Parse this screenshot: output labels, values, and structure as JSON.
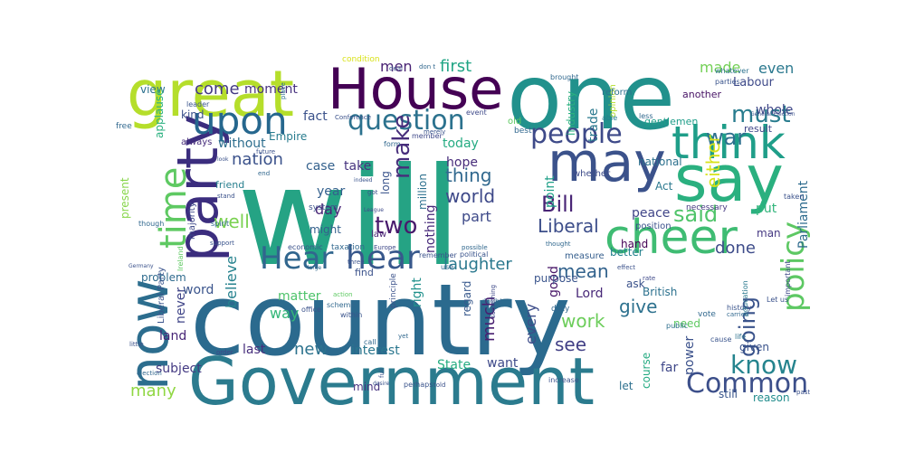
{
  "wordcloud": {
    "words": [
      {
        "text": "will",
        "color": "#25a384"
      },
      {
        "text": "country",
        "color": "#2b6a8e"
      },
      {
        "text": "one",
        "color": "#21918c"
      },
      {
        "text": "Government",
        "color": "#2b7b8e"
      },
      {
        "text": "great",
        "color": "#b5de2b"
      },
      {
        "text": "House",
        "color": "#440154"
      },
      {
        "text": "party",
        "color": "#3b2d7e"
      },
      {
        "text": "may",
        "color": "#3b528b"
      },
      {
        "text": "say",
        "color": "#2ab07f"
      },
      {
        "text": "time",
        "color": "#5ec962"
      },
      {
        "text": "now",
        "color": "#2c6d8e"
      },
      {
        "text": "cheer",
        "color": "#3fbc73"
      },
      {
        "text": "think",
        "color": "#1f9e89"
      },
      {
        "text": "upon",
        "color": "#26678e"
      },
      {
        "text": "hear",
        "color": "#38588c"
      },
      {
        "text": "Hear",
        "color": "#31668e"
      },
      {
        "text": "question",
        "color": "#2c728e"
      },
      {
        "text": "people",
        "color": "#3e4a89"
      },
      {
        "text": "policy",
        "color": "#5dc863"
      },
      {
        "text": "Common",
        "color": "#3c4f8a"
      },
      {
        "text": "know",
        "color": "#25848e"
      },
      {
        "text": "must",
        "color": "#287c8e"
      },
      {
        "text": "war",
        "color": "#2d708e"
      },
      {
        "text": "two",
        "color": "#481a6c"
      },
      {
        "text": "said",
        "color": "#50c46a"
      },
      {
        "text": "make",
        "color": "#472d7b"
      },
      {
        "text": "Bill",
        "color": "#482475"
      },
      {
        "text": "going",
        "color": "#3a538b"
      },
      {
        "text": "either",
        "color": "#d8e219"
      },
      {
        "text": "laughter",
        "color": "#2a788e"
      },
      {
        "text": "well",
        "color": "#7ad151"
      },
      {
        "text": "give",
        "color": "#2d718e"
      },
      {
        "text": "world",
        "color": "#3e4989"
      },
      {
        "text": "mean",
        "color": "#33638d"
      },
      {
        "text": "thing",
        "color": "#31688e"
      },
      {
        "text": "Liberal",
        "color": "#3d4e8a"
      },
      {
        "text": "work",
        "color": "#6ccd5a"
      },
      {
        "text": "many",
        "color": "#90d743"
      },
      {
        "text": "nation",
        "color": "#3b528b"
      },
      {
        "text": "much",
        "color": "#481f70"
      },
      {
        "text": "see",
        "color": "#424086"
      },
      {
        "text": "new",
        "color": "#2c728e"
      },
      {
        "text": "done",
        "color": "#3e4c8a"
      },
      {
        "text": "Parliament",
        "color": "#2f6c8e"
      },
      {
        "text": "believe",
        "color": "#26828e"
      },
      {
        "text": "come",
        "color": "#443a83"
      },
      {
        "text": "first",
        "color": "#21a585"
      },
      {
        "text": "made",
        "color": "#73d056"
      },
      {
        "text": "even",
        "color": "#2a788e"
      },
      {
        "text": "men",
        "color": "#482173"
      },
      {
        "text": "day",
        "color": "#482576"
      },
      {
        "text": "part",
        "color": "#3e4a89"
      },
      {
        "text": "way",
        "color": "#35b779"
      },
      {
        "text": "power",
        "color": "#3b518b"
      },
      {
        "text": "State",
        "color": "#26ad81"
      },
      {
        "text": "interest",
        "color": "#2a768e"
      },
      {
        "text": "every",
        "color": "#3d4d8a"
      },
      {
        "text": "subject",
        "color": "#443a83"
      },
      {
        "text": "last",
        "color": "#472f7d"
      },
      {
        "text": "matter",
        "color": "#4ec36b"
      },
      {
        "text": "land",
        "color": "#482677"
      },
      {
        "text": "never",
        "color": "#404588"
      },
      {
        "text": "word",
        "color": "#3a548c"
      },
      {
        "text": "year",
        "color": "#34608d"
      },
      {
        "text": "case",
        "color": "#34618d"
      },
      {
        "text": "take",
        "color": "#46337f"
      },
      {
        "text": "without",
        "color": "#2e6e8e"
      },
      {
        "text": "today",
        "color": "#25ab82"
      },
      {
        "text": "fact",
        "color": "#3b528b"
      },
      {
        "text": "Lord",
        "color": "#482878"
      },
      {
        "text": "want",
        "color": "#3e4989"
      },
      {
        "text": "good",
        "color": "#481668"
      },
      {
        "text": "hope",
        "color": "#472c7a"
      },
      {
        "text": "point",
        "color": "#1fa088"
      },
      {
        "text": "right",
        "color": "#21918c"
      },
      {
        "text": "peace",
        "color": "#404588"
      },
      {
        "text": "put",
        "color": "#31b57b"
      },
      {
        "text": "trade",
        "color": "#2a788e"
      },
      {
        "text": "long",
        "color": "#3a548c"
      },
      {
        "text": "moment",
        "color": "#46307e"
      },
      {
        "text": "view",
        "color": "#2c718e"
      },
      {
        "text": "kind",
        "color": "#3b518b"
      },
      {
        "text": "always",
        "color": "#472d7b"
      },
      {
        "text": "applause",
        "color": "#2ab07f"
      },
      {
        "text": "whole",
        "color": "#3f4788"
      },
      {
        "text": "another",
        "color": "#471365"
      },
      {
        "text": "Labour",
        "color": "#3e4a89"
      },
      {
        "text": "Empire",
        "color": "#287c8e"
      },
      {
        "text": "present",
        "color": "#86d549"
      },
      {
        "text": "friend",
        "color": "#277f8e"
      },
      {
        "text": "million",
        "color": "#2d708e"
      },
      {
        "text": "nothing",
        "color": "#472a7a"
      },
      {
        "text": "far",
        "color": "#3f4889"
      },
      {
        "text": "given",
        "color": "#3a538b"
      },
      {
        "text": "man",
        "color": "#453882"
      },
      {
        "text": "British",
        "color": "#2c718e"
      },
      {
        "text": "Act",
        "color": "#2a788e"
      },
      {
        "text": "national",
        "color": "#2d718e"
      },
      {
        "text": "industry",
        "color": "#2ab07f"
      },
      {
        "text": "result",
        "color": "#404688"
      },
      {
        "text": "gentlemen",
        "color": "#1f9e89"
      },
      {
        "text": "regard",
        "color": "#38598c"
      },
      {
        "text": "ask",
        "color": "#3b528b"
      },
      {
        "text": "problem",
        "color": "#2f6b8e"
      },
      {
        "text": "might",
        "color": "#34608d"
      },
      {
        "text": "better",
        "color": "#26828e"
      },
      {
        "text": "purpose",
        "color": "#3a548c"
      },
      {
        "text": "hand",
        "color": "#440154"
      },
      {
        "text": "need",
        "color": "#5ec962"
      },
      {
        "text": "course",
        "color": "#25ab82"
      },
      {
        "text": "still",
        "color": "#39568c"
      },
      {
        "text": "reason",
        "color": "#228d8d"
      },
      {
        "text": "let",
        "color": "#2d708e"
      },
      {
        "text": "find",
        "color": "#3b528b"
      },
      {
        "text": "law",
        "color": "#482374"
      },
      {
        "text": "mind",
        "color": "#46337f"
      },
      {
        "text": "whether",
        "color": "#3e4c8a"
      },
      {
        "text": "opinion",
        "color": "#b5de2b"
      },
      {
        "text": "reform",
        "color": "#2c728e"
      },
      {
        "text": "able",
        "color": "#277e8e"
      },
      {
        "text": "less",
        "color": "#31688e"
      },
      {
        "text": "measure",
        "color": "#355e8d"
      },
      {
        "text": "position",
        "color": "#3b518b"
      },
      {
        "text": "necessary",
        "color": "#453781"
      },
      {
        "text": "history",
        "color": "#3a548c"
      },
      {
        "text": "education",
        "color": "#2a788e"
      },
      {
        "text": "Let us",
        "color": "#3b528b"
      },
      {
        "text": "public",
        "color": "#2e6f8e"
      },
      {
        "text": "vote",
        "color": "#31688e"
      },
      {
        "text": "life",
        "color": "#2c718e"
      },
      {
        "text": "cause",
        "color": "#3a548c"
      },
      {
        "text": "past",
        "color": "#3b518b"
      },
      {
        "text": "carried",
        "color": "#31688e"
      },
      {
        "text": "important",
        "color": "#3e4989"
      },
      {
        "text": "taken",
        "color": "#3b528b"
      },
      {
        "text": "whatever",
        "color": "#2c718e"
      },
      {
        "text": "parties",
        "color": "#3a548c"
      },
      {
        "text": "General Election",
        "color": "#3b528b"
      },
      {
        "text": "brought",
        "color": "#31688e"
      },
      {
        "text": "event",
        "color": "#3e4989"
      },
      {
        "text": "condition",
        "color": "#d8e219"
      },
      {
        "text": "deal",
        "color": "#3b528b"
      },
      {
        "text": "don t",
        "color": "#31688e"
      },
      {
        "text": "leader",
        "color": "#3a548c"
      },
      {
        "text": "place",
        "color": "#2c718e"
      },
      {
        "text": "Conference",
        "color": "#3b528b"
      },
      {
        "text": "form",
        "color": "#31688e"
      },
      {
        "text": "member",
        "color": "#3e4989"
      },
      {
        "text": "best",
        "color": "#31688e"
      },
      {
        "text": "old",
        "color": "#5ec962"
      },
      {
        "text": "future",
        "color": "#3b528b"
      },
      {
        "text": "end",
        "color": "#31688e"
      },
      {
        "text": "indeed",
        "color": "#3a548c"
      },
      {
        "text": "got",
        "color": "#3b528b"
      },
      {
        "text": "League",
        "color": "#3e4989"
      },
      {
        "text": "remember",
        "color": "#3b528b"
      },
      {
        "text": "possible",
        "color": "#31688e"
      },
      {
        "text": "political",
        "color": "#3a548c"
      },
      {
        "text": "economic",
        "color": "#3b528b"
      },
      {
        "text": "taxation",
        "color": "#31688e"
      },
      {
        "text": "Europe",
        "color": "#3e4989"
      },
      {
        "text": "three",
        "color": "#3b528b"
      },
      {
        "text": "use",
        "color": "#31688e"
      },
      {
        "text": "Germany",
        "color": "#3b528b"
      },
      {
        "text": "Liberal Party",
        "color": "#3a548c"
      },
      {
        "text": "Ireland",
        "color": "#5ec962"
      },
      {
        "text": "large",
        "color": "#31688e"
      },
      {
        "text": "system",
        "color": "#3b528b"
      },
      {
        "text": "majority",
        "color": "#3e4989"
      },
      {
        "text": "spirit",
        "color": "#31688e"
      },
      {
        "text": "stand",
        "color": "#3b528b"
      },
      {
        "text": "support",
        "color": "#3a548c"
      },
      {
        "text": "though",
        "color": "#31688e"
      },
      {
        "text": "look",
        "color": "#3b528b"
      },
      {
        "text": "free",
        "color": "#31688e"
      },
      {
        "text": "merely",
        "color": "#3a548c"
      },
      {
        "text": "little",
        "color": "#3b528b"
      },
      {
        "text": "election",
        "color": "#31688e"
      },
      {
        "text": "order",
        "color": "#3e4989"
      },
      {
        "text": "office",
        "color": "#3b528b"
      },
      {
        "text": "scheme",
        "color": "#31688e"
      },
      {
        "text": "within",
        "color": "#3a548c"
      },
      {
        "text": "action",
        "color": "#5ec962"
      },
      {
        "text": "principle",
        "color": "#3b528b"
      },
      {
        "text": "call",
        "color": "#31688e"
      },
      {
        "text": "perhaps",
        "color": "#3a548c"
      },
      {
        "text": "told",
        "color": "#3b528b"
      },
      {
        "text": "doubt",
        "color": "#31688e"
      },
      {
        "text": "something",
        "color": "#3e4989"
      },
      {
        "text": "increase",
        "color": "#3b528b"
      },
      {
        "text": "yet",
        "color": "#31688e"
      },
      {
        "text": "desire",
        "color": "#3a548c"
      },
      {
        "text": "full",
        "color": "#3b528b"
      },
      {
        "text": "thought",
        "color": "#31688e"
      },
      {
        "text": "effect",
        "color": "#3b528b"
      },
      {
        "text": "rate",
        "color": "#3e4989"
      },
      {
        "text": "duty",
        "color": "#31688e"
      }
    ]
  }
}
